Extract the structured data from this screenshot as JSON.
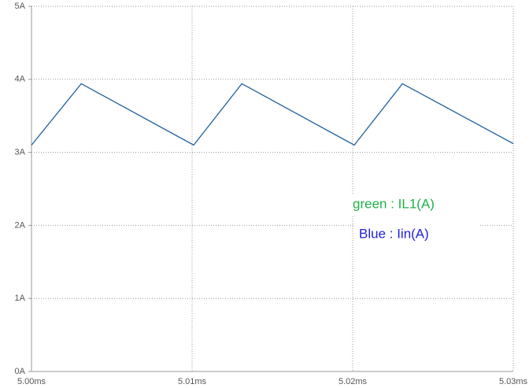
{
  "chart_data": {
    "type": "line",
    "x": [
      5.0,
      5.0031,
      5.0101,
      5.0131,
      5.0201,
      5.0231,
      5.03
    ],
    "series": [
      {
        "name": "green : IL1(A)",
        "color": "#22b14c",
        "values": [
          3.1,
          3.94,
          3.1,
          3.94,
          3.1,
          3.94,
          3.12
        ]
      },
      {
        "name": "Blue : Iin(A)",
        "color": "#1f1fe0",
        "values": [
          3.1,
          3.94,
          3.1,
          3.94,
          3.1,
          3.94,
          3.12
        ]
      }
    ],
    "xlim": [
      5.0,
      5.03
    ],
    "xticks": [
      {
        "value": 5.0,
        "label": "5.00ms"
      },
      {
        "value": 5.01,
        "label": "5.01ms"
      },
      {
        "value": 5.02,
        "label": "5.02ms"
      },
      {
        "value": 5.03,
        "label": "5.03ms"
      }
    ],
    "ylim": [
      0,
      5
    ],
    "yticks": [
      {
        "value": 0,
        "label": "0A"
      },
      {
        "value": 1,
        "label": "1A"
      },
      {
        "value": 2,
        "label": "2A"
      },
      {
        "value": 3,
        "label": "3A"
      },
      {
        "value": 4,
        "label": "4A"
      },
      {
        "value": 5,
        "label": "5A"
      }
    ],
    "grid": true
  }
}
